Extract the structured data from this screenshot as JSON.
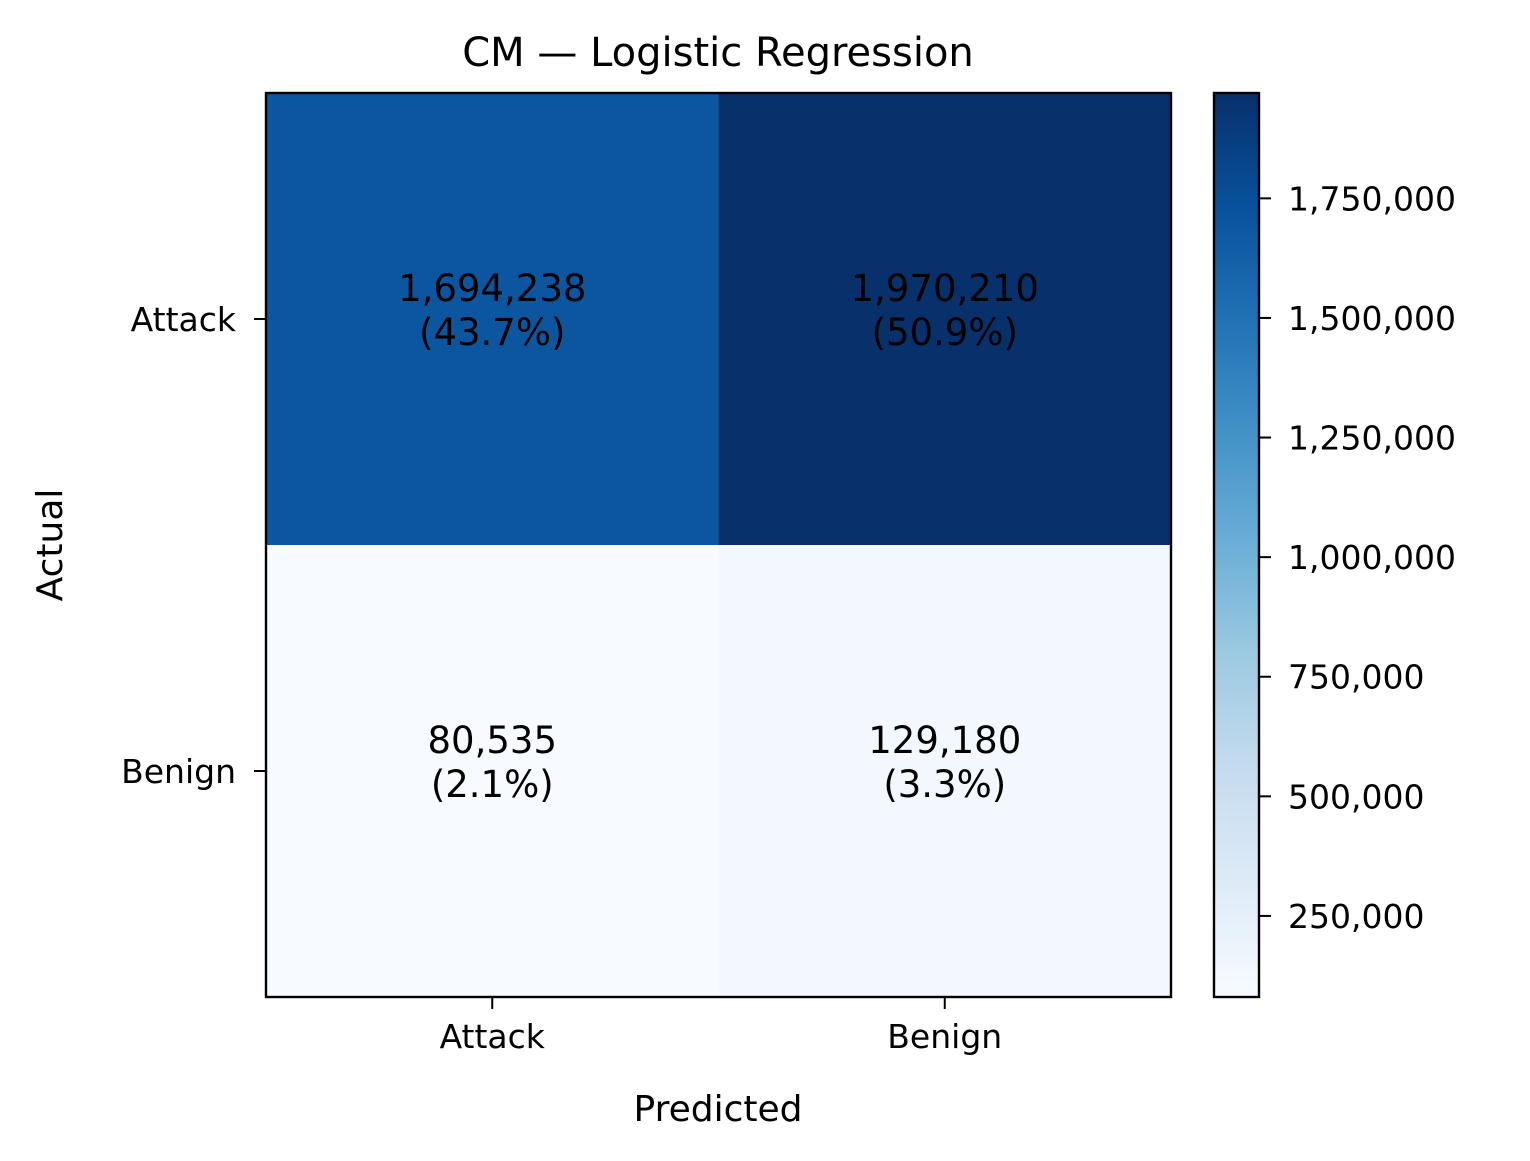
{
  "chart_data": {
    "type": "heatmap",
    "title": "CM — Logistic Regression",
    "xlabel": "Predicted",
    "ylabel": "Actual",
    "x_categories": [
      "Attack",
      "Benign"
    ],
    "y_categories": [
      "Attack",
      "Benign"
    ],
    "values": [
      [
        1694238,
        1970210
      ],
      [
        80535,
        129180
      ]
    ],
    "cell_labels": [
      [
        {
          "count": "1,694,238",
          "pct": "(43.7%)"
        },
        {
          "count": "1,970,210",
          "pct": "(50.9%)"
        }
      ],
      [
        {
          "count": "80,535",
          "pct": "(2.1%)"
        },
        {
          "count": "129,180",
          "pct": "(3.3%)"
        }
      ]
    ],
    "colormap": "Blues",
    "colorbar": {
      "range": [
        80535,
        1970210
      ],
      "ticks": [
        250000,
        500000,
        750000,
        1000000,
        1250000,
        1500000,
        1750000
      ],
      "tick_labels": [
        "250,000",
        "500,000",
        "750,000",
        "1,000,000",
        "1,250,000",
        "1,500,000",
        "1,750,000"
      ]
    }
  }
}
